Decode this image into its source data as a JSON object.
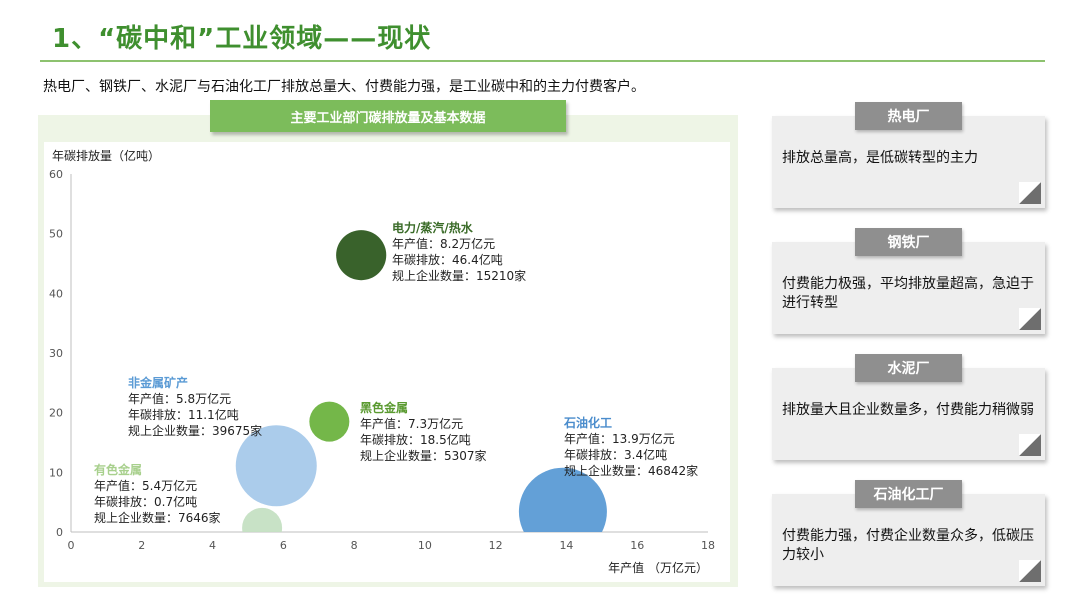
{
  "page": {
    "title": "1、“碳中和”工业领域——现状",
    "subtitle": "热电厂、钢铁厂、水泥厂与石油化工厂排放总量大、付费能力强，是工业碳中和的主力付费客户。"
  },
  "chart_header": "主要工业部门碳排放量及基本数据",
  "chart_data": {
    "type": "scatter",
    "ylabel": "年碳排放量（亿吨）",
    "xlabel": "年产值 （万亿元）",
    "xlim": [
      0,
      18
    ],
    "ylim": [
      0,
      60
    ],
    "x_ticks": [
      "0",
      "2",
      "4",
      "6",
      "8",
      "10",
      "12",
      "14",
      "16",
      "18"
    ],
    "y_ticks": [
      "0",
      "10",
      "20",
      "30",
      "40",
      "50",
      "60"
    ],
    "series": [
      {
        "name": "电力/蒸汽/热水",
        "x": 8.2,
        "y": 46.4,
        "count": 15210,
        "color": "#2e5a20",
        "name_color": "#3a6b28",
        "lines": [
          "年产值：8.2万亿元",
          "年碳排放：46.4亿吨",
          "规上企业数量：15210家"
        ]
      },
      {
        "name": "非金属矿产",
        "x": 5.8,
        "y": 11.1,
        "count": 39675,
        "color": "#a6c9ea",
        "name_color": "#5b9bd5",
        "lines": [
          "年产值：5.8万亿元",
          "年碳排放：11.1亿吨",
          "规上企业数量：39675家"
        ]
      },
      {
        "name": "黑色金属",
        "x": 7.3,
        "y": 18.5,
        "count": 5307,
        "color": "#6db33f",
        "name_color": "#5a9a30",
        "lines": [
          "年产值：7.3万亿元",
          "年碳排放：18.5亿吨",
          "规上企业数量：5307家"
        ]
      },
      {
        "name": "石油化工",
        "x": 13.9,
        "y": 3.4,
        "count": 46842,
        "color": "#5b9bd5",
        "name_color": "#4a8ccc",
        "lines": [
          "年产值：13.9万亿元",
          "年碳排放：3.4亿吨",
          "规上企业数量：46842家"
        ]
      },
      {
        "name": "有色金属",
        "x": 5.4,
        "y": 0.7,
        "count": 7646,
        "color": "#c5e0c3",
        "name_color": "#a8d08d",
        "lines": [
          "年产值：5.4万亿元",
          "年碳排放：0.7亿吨",
          "规上企业数量：7646家"
        ]
      }
    ]
  },
  "cards": [
    {
      "head": "热电厂",
      "text": "排放总量高，是低碳转型的主力"
    },
    {
      "head": "钢铁厂",
      "text": "付费能力极强，平均排放量超高，急迫于进行转型"
    },
    {
      "head": "水泥厂",
      "text": "排放量大且企业数量多，付费能力稍微弱"
    },
    {
      "head": "石油化工厂",
      "text": "付费能力强，付费企业数量众多，低碳压力较小"
    }
  ]
}
